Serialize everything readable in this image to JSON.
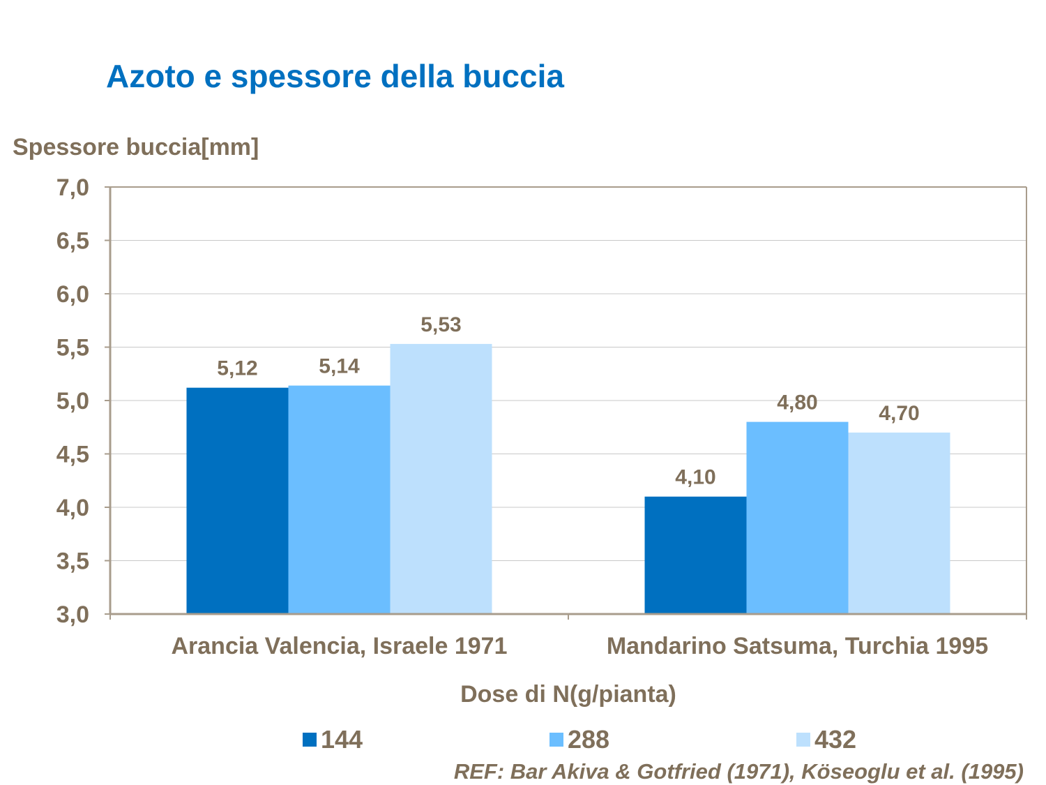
{
  "title": "Azoto e spessore della buccia",
  "reference": "REF: Bar Akiva & Gotfried (1971), Köseoglu et al. (1995)",
  "colors": {
    "text": "#7f6f5a",
    "title": "#0070c0",
    "series": [
      "#0070c0",
      "#6bbeff",
      "#bde0fd"
    ]
  },
  "chart_data": {
    "type": "bar",
    "ylabel": "Spessore buccia[mm]",
    "xlabel": "Dose di N(g/pianta)",
    "categories": [
      "Arancia Valencia, Israele 1971",
      "Mandarino Satsuma, Turchia 1995"
    ],
    "series": [
      {
        "name": "144",
        "values": [
          5.12,
          4.1
        ],
        "labels": [
          "5,12",
          "4,10"
        ]
      },
      {
        "name": "288",
        "values": [
          5.14,
          4.8
        ],
        "labels": [
          "5,14",
          "4,80"
        ]
      },
      {
        "name": "432",
        "values": [
          5.53,
          4.7
        ],
        "labels": [
          "5,53",
          "4,70"
        ]
      }
    ],
    "ylim": [
      3.0,
      7.0
    ],
    "yticks": [
      3.0,
      3.5,
      4.0,
      4.5,
      5.0,
      5.5,
      6.0,
      6.5,
      7.0
    ],
    "ytick_labels": [
      "3,0",
      "3,5",
      "4,0",
      "4,5",
      "5,0",
      "5,5",
      "6,0",
      "6,5",
      "7,0"
    ],
    "grid": true,
    "legend_position": "bottom"
  }
}
